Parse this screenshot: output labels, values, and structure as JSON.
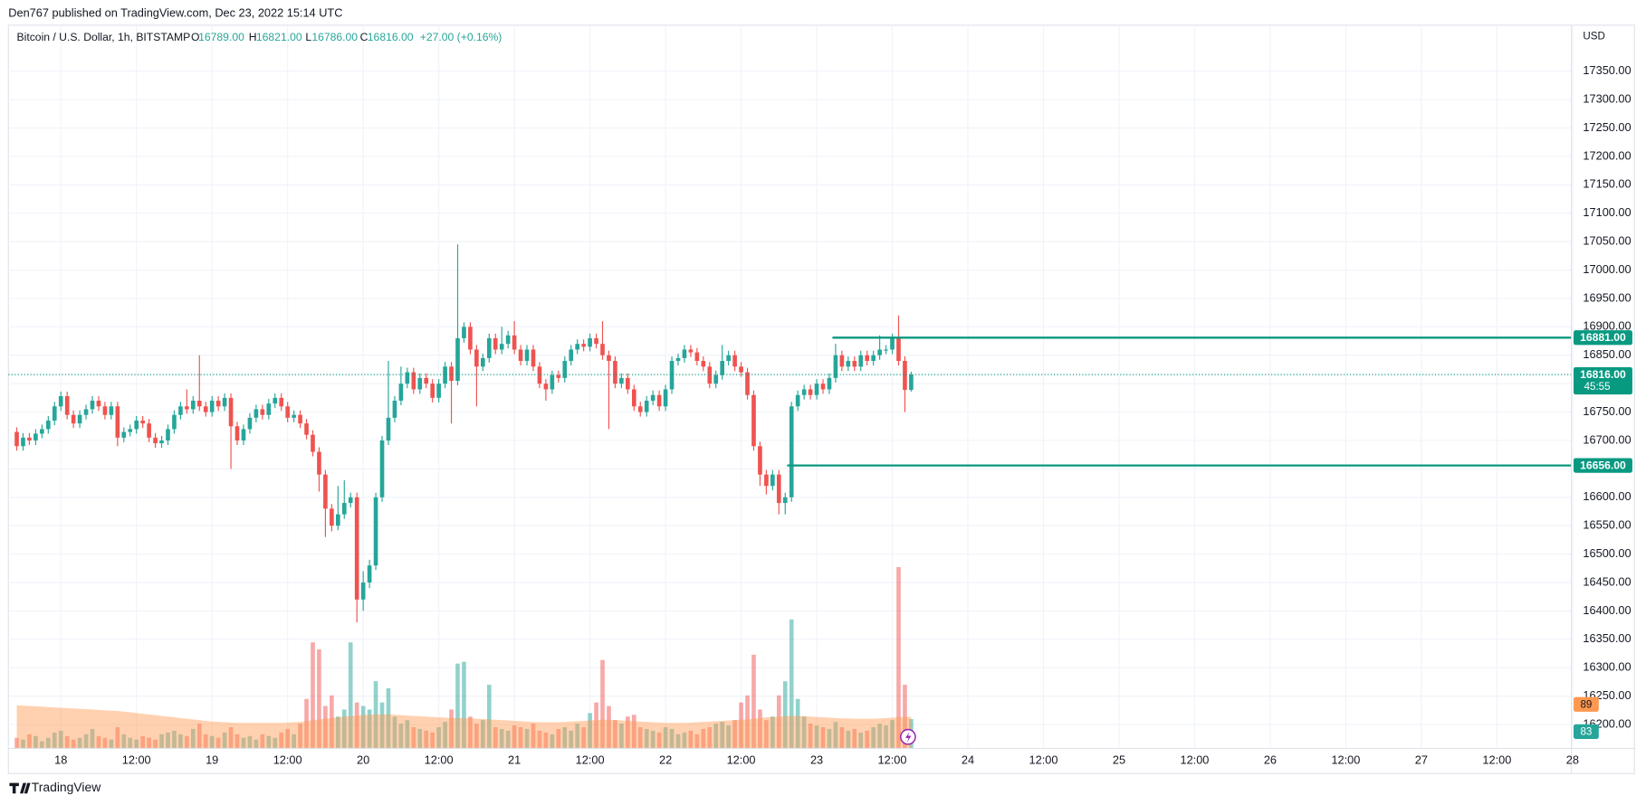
{
  "published": "Den767 published on TradingView.com, Dec 23, 2022 15:14 UTC",
  "brand": "TradingView",
  "chart_data": {
    "type": "candlestick",
    "legend": {
      "symbol": "Bitcoin / U.S. Dollar, 1h, BITSTAMP",
      "ohlc": [
        {
          "key": "O",
          "value": "16789.00"
        },
        {
          "key": "H",
          "value": "16821.00"
        },
        {
          "key": "L",
          "value": "16786.00"
        },
        {
          "key": "C",
          "value": "16816.00"
        }
      ],
      "change": "+27.00 (+0.16%)"
    },
    "currency": "USD",
    "up_color": "#26a69a",
    "down_color": "#ef5350",
    "ma_color": "#ff9850",
    "level_color": "#089981",
    "grid": true,
    "xlim": [
      -8.33,
      239.83
    ],
    "ylim": [
      16158,
      17431
    ],
    "xticks": [
      {
        "value": 0,
        "label": "18"
      },
      {
        "value": 12,
        "label": "12:00"
      },
      {
        "value": 24,
        "label": "19"
      },
      {
        "value": 36,
        "label": "12:00"
      },
      {
        "value": 48,
        "label": "20"
      },
      {
        "value": 60,
        "label": "12:00"
      },
      {
        "value": 72,
        "label": "21"
      },
      {
        "value": 84,
        "label": "12:00"
      },
      {
        "value": 96,
        "label": "22"
      },
      {
        "value": 108,
        "label": "12:00"
      },
      {
        "value": 120,
        "label": "23"
      },
      {
        "value": 132,
        "label": "12:00"
      },
      {
        "value": 144,
        "label": "24"
      },
      {
        "value": 156,
        "label": "12:00"
      },
      {
        "value": 168,
        "label": "25"
      },
      {
        "value": 180,
        "label": "12:00"
      },
      {
        "value": 192,
        "label": "26"
      },
      {
        "value": 204,
        "label": "12:00"
      },
      {
        "value": 216,
        "label": "27"
      },
      {
        "value": 228,
        "label": "12:00"
      },
      {
        "value": 240,
        "label": "28"
      }
    ],
    "yticks": [
      {
        "value": 16200,
        "label": "16200.00"
      },
      {
        "value": 16250,
        "label": "16250.00"
      },
      {
        "value": 16300,
        "label": "16300.00"
      },
      {
        "value": 16350,
        "label": "16350.00"
      },
      {
        "value": 16400,
        "label": "16400.00"
      },
      {
        "value": 16450,
        "label": "16450.00"
      },
      {
        "value": 16500,
        "label": "16500.00"
      },
      {
        "value": 16550,
        "label": "16550.00"
      },
      {
        "value": 16600,
        "label": "16600.00"
      },
      {
        "value": 16650,
        "label": "16650.00"
      },
      {
        "value": 16700,
        "label": "16700.00"
      },
      {
        "value": 16750,
        "label": "16750.00"
      },
      {
        "value": 16800,
        "label": "16800.00"
      },
      {
        "value": 16850,
        "label": "16850.00"
      },
      {
        "value": 16900,
        "label": "16900.00"
      },
      {
        "value": 16950,
        "label": "16950.00"
      },
      {
        "value": 17000,
        "label": "17000.00"
      },
      {
        "value": 17050,
        "label": "17050.00"
      },
      {
        "value": 17100,
        "label": "17100.00"
      },
      {
        "value": 17150,
        "label": "17150.00"
      },
      {
        "value": 17200,
        "label": "17200.00"
      },
      {
        "value": 17250,
        "label": "17250.00"
      },
      {
        "value": 17300,
        "label": "17300.00"
      },
      {
        "value": 17350,
        "label": "17350.00"
      }
    ],
    "x": [
      -7,
      -6,
      -5,
      -4,
      -3,
      -2,
      -1,
      0,
      1,
      2,
      3,
      4,
      5,
      6,
      7,
      8,
      9,
      10,
      11,
      12,
      13,
      14,
      15,
      16,
      17,
      18,
      19,
      20,
      21,
      22,
      23,
      24,
      25,
      26,
      27,
      28,
      29,
      30,
      31,
      32,
      33,
      34,
      35,
      36,
      37,
      38,
      39,
      40,
      41,
      42,
      43,
      44,
      45,
      46,
      47,
      48,
      49,
      50,
      51,
      52,
      53,
      54,
      55,
      56,
      57,
      58,
      59,
      60,
      61,
      62,
      63,
      64,
      65,
      66,
      67,
      68,
      69,
      70,
      71,
      72,
      73,
      74,
      75,
      76,
      77,
      78,
      79,
      80,
      81,
      82,
      83,
      84,
      85,
      86,
      87,
      88,
      89,
      90,
      91,
      92,
      93,
      94,
      95,
      96,
      97,
      98,
      99,
      100,
      101,
      102,
      103,
      104,
      105,
      106,
      107,
      108,
      109,
      110,
      111,
      112,
      113,
      114,
      115,
      116,
      117,
      118,
      119,
      120,
      121,
      122,
      123,
      124,
      125,
      126,
      127,
      128,
      129,
      130,
      131,
      132,
      133,
      134,
      135
    ],
    "open": [
      16715,
      16690,
      16705,
      16700,
      16712,
      16720,
      16735,
      16760,
      16778,
      16745,
      16730,
      16745,
      16755,
      16770,
      16760,
      16745,
      16760,
      16705,
      16715,
      16720,
      16735,
      16730,
      16705,
      16695,
      16700,
      16720,
      16745,
      16760,
      16755,
      16770,
      16760,
      16750,
      16770,
      16760,
      16775,
      16725,
      16700,
      16720,
      16740,
      16755,
      16745,
      16765,
      16775,
      16760,
      16740,
      16745,
      16730,
      16710,
      16680,
      16640,
      16580,
      16550,
      16570,
      16590,
      16600,
      16420,
      16450,
      16480,
      16600,
      16700,
      16740,
      16770,
      16800,
      16820,
      16790,
      16810,
      16800,
      16775,
      16800,
      16830,
      16805,
      16880,
      16900,
      16860,
      16830,
      16845,
      16880,
      16860,
      16870,
      16885,
      16860,
      16840,
      16860,
      16830,
      16800,
      16790,
      16815,
      16810,
      16840,
      16860,
      16870,
      16865,
      16880,
      16870,
      16850,
      16840,
      16800,
      16810,
      16790,
      16760,
      16750,
      16770,
      16780,
      16760,
      16790,
      16840,
      16845,
      16860,
      16855,
      16840,
      16830,
      16800,
      16815,
      16840,
      16850,
      16830,
      16820,
      16780,
      16690,
      16640,
      16620,
      16640,
      16590,
      16600,
      16760,
      16780,
      16790,
      16780,
      16800,
      16790,
      16810,
      16850,
      16830,
      16840,
      16830,
      16850,
      16840,
      16850,
      16860,
      16860,
      16880,
      16840,
      16789
    ],
    "high": [
      16723,
      16713,
      16713,
      16720,
      16728,
      16743,
      16768,
      16786,
      16786,
      16753,
      16753,
      16763,
      16778,
      16778,
      16768,
      16768,
      16768,
      16723,
      16728,
      16743,
      16743,
      16738,
      16713,
      16708,
      16728,
      16753,
      16768,
      16790,
      16778,
      16850,
      16768,
      16778,
      16778,
      16783,
      16783,
      16733,
      16728,
      16748,
      16763,
      16763,
      16773,
      16783,
      16783,
      16768,
      16753,
      16753,
      16738,
      16718,
      16688,
      16648,
      16588,
      16620,
      16630,
      16608,
      16608,
      16470,
      16490,
      16608,
      16708,
      16840,
      16778,
      16830,
      16828,
      16828,
      16818,
      16818,
      16808,
      16808,
      16838,
      16838,
      17045,
      16908,
      16908,
      16868,
      16853,
      16888,
      16888,
      16900,
      16893,
      16910,
      16868,
      16868,
      16868,
      16838,
      16808,
      16823,
      16823,
      16848,
      16868,
      16878,
      16878,
      16888,
      16888,
      16910,
      16858,
      16848,
      16818,
      16818,
      16798,
      16768,
      16778,
      16788,
      16788,
      16798,
      16848,
      16853,
      16868,
      16868,
      16863,
      16848,
      16838,
      16823,
      16868,
      16858,
      16858,
      16838,
      16828,
      16788,
      16698,
      16648,
      16648,
      16648,
      16608,
      16768,
      16788,
      16798,
      16798,
      16808,
      16808,
      16818,
      16870,
      16858,
      16848,
      16848,
      16858,
      16858,
      16858,
      16885,
      16868,
      16888,
      16920,
      16848,
      16821
    ],
    "low": [
      16682,
      16682,
      16692,
      16692,
      16704,
      16712,
      16727,
      16752,
      16737,
      16722,
      16722,
      16737,
      16747,
      16752,
      16737,
      16737,
      16690,
      16697,
      16707,
      16712,
      16722,
      16697,
      16687,
      16687,
      16692,
      16712,
      16737,
      16747,
      16747,
      16752,
      16742,
      16742,
      16752,
      16752,
      16650,
      16692,
      16692,
      16712,
      16732,
      16737,
      16737,
      16757,
      16752,
      16732,
      16732,
      16722,
      16702,
      16672,
      16610,
      16530,
      16540,
      16542,
      16562,
      16582,
      16380,
      16400,
      16440,
      16472,
      16592,
      16692,
      16732,
      16762,
      16792,
      16782,
      16782,
      16792,
      16767,
      16767,
      16792,
      16730,
      16797,
      16872,
      16852,
      16760,
      16822,
      16837,
      16852,
      16852,
      16862,
      16852,
      16832,
      16832,
      16822,
      16792,
      16770,
      16782,
      16802,
      16802,
      16832,
      16852,
      16857,
      16857,
      16862,
      16842,
      16720,
      16792,
      16792,
      16782,
      16752,
      16742,
      16742,
      16762,
      16752,
      16752,
      16782,
      16832,
      16837,
      16847,
      16832,
      16822,
      16792,
      16792,
      16807,
      16832,
      16822,
      16812,
      16772,
      16682,
      16620,
      16605,
      16612,
      16570,
      16570,
      16592,
      16752,
      16772,
      16772,
      16772,
      16782,
      16782,
      16802,
      16822,
      16822,
      16822,
      16822,
      16832,
      16832,
      16842,
      16852,
      16852,
      16832,
      16750,
      16786
    ],
    "close": [
      16690,
      16705,
      16700,
      16712,
      16720,
      16735,
      16760,
      16778,
      16745,
      16730,
      16745,
      16755,
      16770,
      16760,
      16745,
      16760,
      16705,
      16715,
      16720,
      16735,
      16730,
      16705,
      16695,
      16700,
      16720,
      16745,
      16760,
      16755,
      16770,
      16760,
      16750,
      16770,
      16760,
      16775,
      16725,
      16700,
      16720,
      16740,
      16755,
      16745,
      16765,
      16775,
      16760,
      16740,
      16745,
      16730,
      16710,
      16680,
      16640,
      16580,
      16550,
      16570,
      16590,
      16600,
      16420,
      16450,
      16480,
      16600,
      16700,
      16740,
      16770,
      16800,
      16820,
      16790,
      16810,
      16800,
      16775,
      16800,
      16830,
      16805,
      16880,
      16900,
      16860,
      16830,
      16845,
      16880,
      16860,
      16870,
      16885,
      16860,
      16840,
      16860,
      16830,
      16800,
      16790,
      16815,
      16810,
      16840,
      16860,
      16870,
      16865,
      16880,
      16870,
      16850,
      16840,
      16800,
      16810,
      16790,
      16760,
      16750,
      16770,
      16780,
      16760,
      16790,
      16840,
      16845,
      16860,
      16855,
      16840,
      16830,
      16800,
      16815,
      16840,
      16850,
      16830,
      16820,
      16780,
      16690,
      16640,
      16620,
      16640,
      16590,
      16600,
      16760,
      16780,
      16790,
      16780,
      16800,
      16790,
      16810,
      16850,
      16830,
      16840,
      16830,
      16850,
      16840,
      16850,
      16860,
      16860,
      16880,
      16840,
      16789,
      16816
    ],
    "volume": [
      30,
      25,
      40,
      35,
      20,
      30,
      45,
      50,
      35,
      25,
      30,
      40,
      55,
      35,
      30,
      25,
      60,
      40,
      30,
      25,
      35,
      30,
      25,
      40,
      45,
      50,
      40,
      35,
      55,
      70,
      40,
      35,
      30,
      45,
      60,
      40,
      30,
      35,
      25,
      40,
      35,
      30,
      45,
      55,
      40,
      70,
      140,
      300,
      280,
      120,
      150,
      90,
      110,
      300,
      130,
      120,
      110,
      190,
      130,
      170,
      90,
      70,
      80,
      60,
      55,
      50,
      45,
      60,
      75,
      110,
      240,
      245,
      90,
      70,
      80,
      180,
      60,
      55,
      50,
      65,
      60,
      55,
      70,
      50,
      45,
      40,
      55,
      60,
      50,
      70,
      60,
      100,
      130,
      250,
      120,
      80,
      70,
      90,
      95,
      60,
      55,
      50,
      45,
      60,
      55,
      40,
      45,
      50,
      40,
      55,
      60,
      70,
      75,
      65,
      80,
      130,
      150,
      265,
      110,
      80,
      90,
      150,
      190,
      365,
      140,
      90,
      70,
      65,
      60,
      55,
      75,
      60,
      50,
      55,
      45,
      50,
      60,
      70,
      65,
      80,
      513,
      180,
      83
    ],
    "volume_ma": [
      122,
      121,
      120,
      119,
      118,
      117,
      116,
      115,
      114,
      113,
      112,
      111,
      110,
      109,
      108,
      107,
      106,
      104,
      102,
      100,
      98,
      96,
      94,
      92,
      90,
      88,
      86,
      84,
      82,
      80,
      78,
      76,
      75,
      74,
      73,
      72,
      72,
      72,
      72,
      72,
      72,
      72,
      72,
      73,
      74,
      75,
      77,
      80,
      82,
      84,
      86,
      88,
      90,
      92,
      93,
      94,
      95,
      96,
      96,
      96,
      95,
      94,
      93,
      92,
      91,
      90,
      89,
      88,
      87,
      86,
      86,
      86,
      85,
      84,
      83,
      82,
      81,
      80,
      79,
      78,
      77,
      76,
      75,
      74,
      74,
      74,
      74,
      75,
      76,
      77,
      78,
      79,
      80,
      81,
      81,
      80,
      79,
      78,
      77,
      76,
      75,
      74,
      73,
      72,
      72,
      72,
      72,
      73,
      74,
      75,
      76,
      77,
      78,
      79,
      80,
      81,
      82,
      84,
      86,
      88,
      89,
      90,
      91,
      92,
      92,
      91,
      90,
      89,
      88,
      87,
      86,
      85,
      85,
      84,
      84,
      84,
      84,
      85,
      86,
      87,
      88,
      89,
      89
    ],
    "levels": [
      {
        "value": 16881,
        "label": "16881.00",
        "x": 122.5
      },
      {
        "value": 16656,
        "label": "16656.00",
        "x": 115.3
      }
    ],
    "last_price": {
      "value": 16816,
      "label": "16816.00",
      "countdown": "45:55"
    }
  }
}
